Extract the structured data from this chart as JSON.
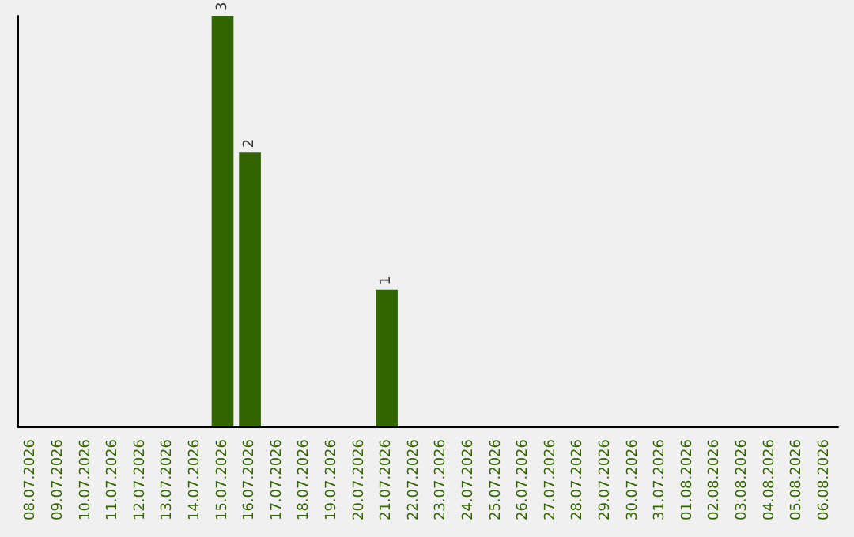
{
  "chart_data": {
    "type": "bar",
    "categories": [
      "08.07.2026",
      "09.07.2026",
      "10.07.2026",
      "11.07.2026",
      "12.07.2026",
      "13.07.2026",
      "14.07.2026",
      "15.07.2026",
      "16.07.2026",
      "17.07.2026",
      "18.07.2026",
      "19.07.2026",
      "20.07.2026",
      "21.07.2026",
      "22.07.2026",
      "23.07.2026",
      "24.07.2026",
      "25.07.2026",
      "26.07.2026",
      "27.07.2026",
      "28.07.2026",
      "29.07.2026",
      "30.07.2026",
      "31.07.2026",
      "01.08.2026",
      "02.08.2026",
      "03.08.2026",
      "04.08.2026",
      "05.08.2026",
      "06.08.2026"
    ],
    "values": [
      0,
      0,
      0,
      0,
      0,
      0,
      0,
      3,
      2,
      0,
      0,
      0,
      0,
      1,
      0,
      0,
      0,
      0,
      0,
      0,
      0,
      0,
      0,
      0,
      0,
      0,
      0,
      0,
      0,
      0
    ],
    "value_labels": [
      null,
      null,
      null,
      null,
      null,
      null,
      null,
      "3",
      "2",
      null,
      null,
      null,
      null,
      "1",
      null,
      null,
      null,
      null,
      null,
      null,
      null,
      null,
      null,
      null,
      null,
      null,
      null,
      null,
      null,
      null
    ],
    "color": "#336600",
    "grid": false,
    "tick_labels": "x"
  }
}
